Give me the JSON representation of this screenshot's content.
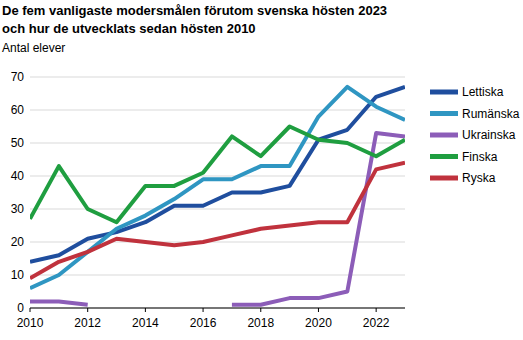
{
  "chart_data": {
    "type": "line",
    "title": "De fem vanligaste modersmålen förutom svenska hösten 2023",
    "subtitle": "och hur de utvecklats sedan hösten 2010",
    "y_label": "Antal elever",
    "x": [
      2010,
      2011,
      2012,
      2013,
      2014,
      2015,
      2016,
      2017,
      2018,
      2019,
      2020,
      2021,
      2022,
      2023
    ],
    "xlim": [
      2010,
      2023
    ],
    "xticks": [
      2010,
      2012,
      2014,
      2016,
      2018,
      2020,
      2022
    ],
    "ylim": [
      0,
      70
    ],
    "yticks": [
      0,
      10,
      20,
      30,
      40,
      50,
      60,
      70
    ],
    "grid": true,
    "legend": "right",
    "series": [
      {
        "name": "Lettiska",
        "color": "#1f4e9e",
        "values": [
          14,
          16,
          21,
          23,
          26,
          31,
          31,
          35,
          35,
          37,
          51,
          54,
          64,
          67
        ]
      },
      {
        "name": "Rumänska",
        "color": "#2f96c2",
        "values": [
          6,
          10,
          17,
          24,
          28,
          33,
          39,
          39,
          43,
          43,
          58,
          67,
          61,
          57
        ]
      },
      {
        "name": "Ukrainska",
        "color": "#8c5db8",
        "values": [
          2,
          2,
          1,
          null,
          null,
          null,
          null,
          1,
          1,
          3,
          3,
          5,
          53,
          52
        ]
      },
      {
        "name": "Finska",
        "color": "#1f9e40",
        "values": [
          27,
          43,
          30,
          26,
          37,
          37,
          41,
          52,
          46,
          55,
          51,
          50,
          46,
          51
        ]
      },
      {
        "name": "Ryska",
        "color": "#c0323d",
        "values": [
          9,
          14,
          17,
          21,
          20,
          19,
          20,
          22,
          24,
          25,
          26,
          26,
          42,
          44
        ]
      }
    ]
  }
}
